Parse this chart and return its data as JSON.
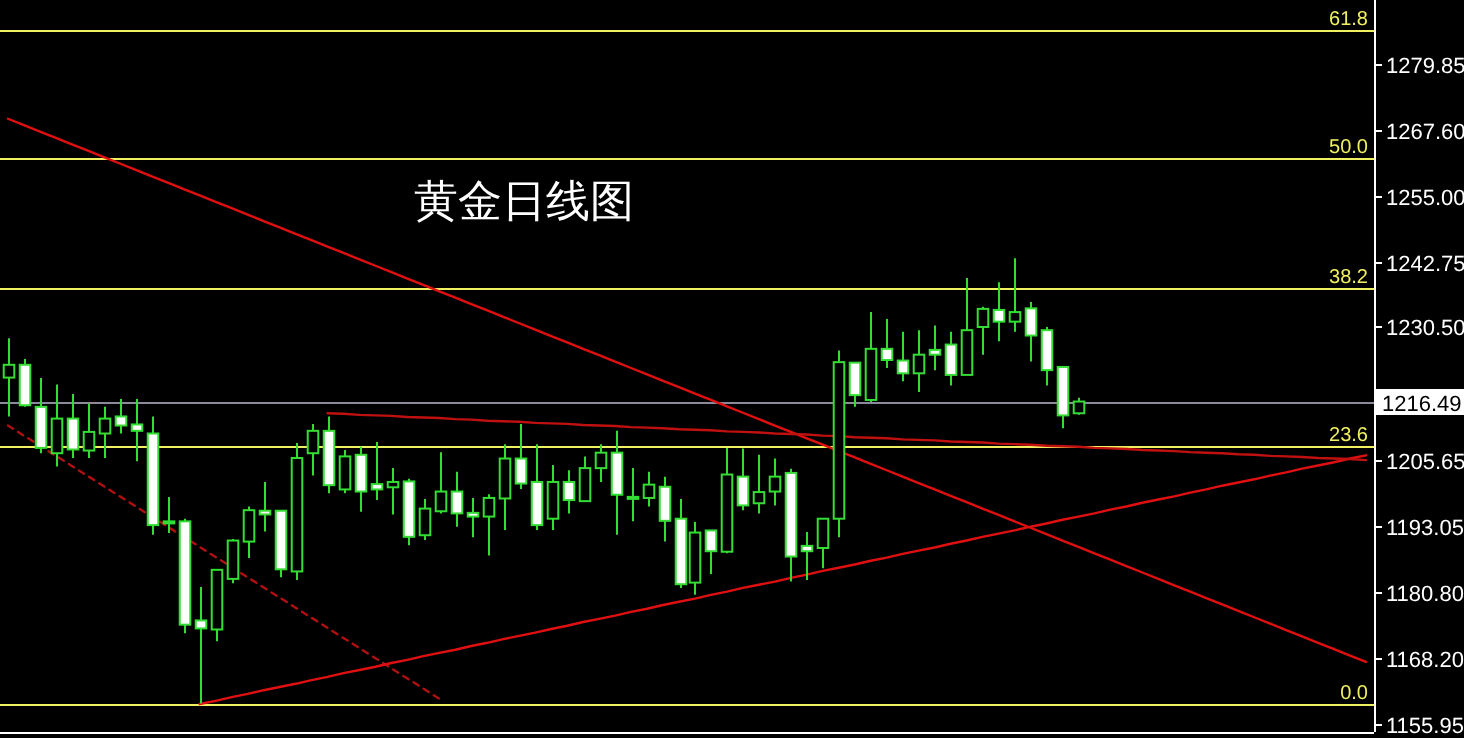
{
  "chart_data": {
    "type": "candlestick",
    "title": "黄金日线图",
    "categories": [
      null,
      null,
      null,
      null,
      null,
      null,
      null,
      null,
      null,
      null,
      null,
      null,
      null,
      null,
      null,
      null,
      null,
      null,
      null,
      null,
      null,
      null,
      null,
      null,
      null,
      null,
      null,
      null,
      null,
      null,
      null,
      null,
      null,
      null,
      null,
      null,
      null,
      null,
      null,
      null,
      null,
      null,
      null,
      null,
      null,
      null,
      null,
      null,
      null,
      null,
      null,
      null,
      null,
      null,
      null,
      null,
      null,
      null,
      null,
      null,
      null,
      null,
      null,
      null,
      null,
      null,
      null,
      null,
      null,
      null,
      null,
      null,
      null,
      null,
      null,
      null,
      null,
      null,
      null,
      null,
      null,
      null,
      null,
      null,
      null,
      null
    ],
    "ohlc": [
      [
        1221.0,
        1228.4,
        1213.7,
        1223.4
      ],
      [
        1223.4,
        1224.5,
        1215.5,
        1215.8
      ],
      [
        1215.5,
        1220.9,
        1206.8,
        1207.8
      ],
      [
        1206.8,
        1219.7,
        1204.3,
        1213.3
      ],
      [
        1213.3,
        1217.9,
        1205.9,
        1207.5
      ],
      [
        1207.3,
        1216.2,
        1205.9,
        1210.8
      ],
      [
        1210.5,
        1215.5,
        1205.9,
        1213.3
      ],
      [
        1213.7,
        1217.0,
        1210.5,
        1212.0
      ],
      [
        1212.2,
        1217.0,
        1205.3,
        1211.0
      ],
      [
        1210.5,
        1213.7,
        1191.5,
        1193.3
      ],
      [
        1193.9,
        1198.6,
        1191.8,
        1194.0
      ],
      [
        1194.0,
        1194.5,
        1173.0,
        1174.6
      ],
      [
        1175.4,
        1181.7,
        1159.8,
        1173.9
      ],
      [
        1173.7,
        1184.9,
        1171.5,
        1184.9
      ],
      [
        1183.2,
        1190.7,
        1182.4,
        1190.4
      ],
      [
        1190.2,
        1196.8,
        1187.1,
        1196.1
      ],
      [
        1196.0,
        1201.4,
        1192.1,
        1195.3
      ],
      [
        1196.0,
        1196.0,
        1183.5,
        1185.0
      ],
      [
        1184.6,
        1208.7,
        1183.0,
        1205.9
      ],
      [
        1206.8,
        1212.3,
        1202.6,
        1211.0
      ],
      [
        1211.0,
        1213.7,
        1199.3,
        1200.8
      ],
      [
        1200.0,
        1207.4,
        1199.3,
        1206.2
      ],
      [
        1206.5,
        1208.0,
        1195.8,
        1199.6
      ],
      [
        1201.0,
        1208.9,
        1198.0,
        1200.0
      ],
      [
        1200.4,
        1204.0,
        1195.3,
        1201.4
      ],
      [
        1201.5,
        1202.0,
        1189.5,
        1191.1
      ],
      [
        1191.4,
        1198.2,
        1190.5,
        1196.4
      ],
      [
        1195.9,
        1207.0,
        1195.5,
        1199.6
      ],
      [
        1199.6,
        1203.3,
        1193.0,
        1195.5
      ],
      [
        1195.6,
        1198.4,
        1191.0,
        1194.9
      ],
      [
        1194.9,
        1199.1,
        1187.6,
        1198.4
      ],
      [
        1198.3,
        1208.5,
        1192.4,
        1205.8
      ],
      [
        1205.8,
        1212.3,
        1200.1,
        1201.1
      ],
      [
        1201.4,
        1208.5,
        1192.4,
        1193.3
      ],
      [
        1194.5,
        1204.6,
        1192.4,
        1201.4
      ],
      [
        1201.4,
        1203.6,
        1195.5,
        1198.0
      ],
      [
        1197.8,
        1206.2,
        1197.8,
        1204.0
      ],
      [
        1204.0,
        1208.5,
        1201.4,
        1206.9
      ],
      [
        1206.9,
        1211.0,
        1191.5,
        1199.0
      ],
      [
        1198.6,
        1204.0,
        1194.0,
        1198.6
      ],
      [
        1198.4,
        1203.3,
        1196.8,
        1200.9
      ],
      [
        1200.5,
        1202.4,
        1190.2,
        1194.1
      ],
      [
        1194.5,
        1198.2,
        1181.5,
        1182.2
      ],
      [
        1182.5,
        1193.9,
        1180.2,
        1191.9
      ],
      [
        1192.3,
        1192.3,
        1184.1,
        1188.4
      ],
      [
        1188.3,
        1207.8,
        1188.0,
        1202.8
      ],
      [
        1202.4,
        1207.7,
        1196.1,
        1197.0
      ],
      [
        1197.4,
        1206.5,
        1195.5,
        1199.5
      ],
      [
        1199.6,
        1205.8,
        1197.0,
        1202.4
      ],
      [
        1203.1,
        1203.9,
        1182.7,
        1187.4
      ],
      [
        1189.4,
        1192.0,
        1183.0,
        1188.4
      ],
      [
        1189.0,
        1194.5,
        1185.2,
        1194.5
      ],
      [
        1194.5,
        1226.1,
        1191.0,
        1223.9
      ],
      [
        1223.8,
        1223.8,
        1215.5,
        1217.7
      ],
      [
        1216.8,
        1233.3,
        1216.4,
        1226.4
      ],
      [
        1226.4,
        1232.0,
        1222.8,
        1224.3
      ],
      [
        1224.2,
        1229.6,
        1220.3,
        1221.8
      ],
      [
        1221.8,
        1229.9,
        1218.3,
        1225.3
      ],
      [
        1226.2,
        1230.8,
        1222.4,
        1225.3
      ],
      [
        1227.2,
        1229.6,
        1219.5,
        1221.5
      ],
      [
        1221.5,
        1239.7,
        1221.5,
        1229.9
      ],
      [
        1230.5,
        1234.3,
        1225.3,
        1233.9
      ],
      [
        1233.7,
        1238.9,
        1227.8,
        1231.5
      ],
      [
        1231.5,
        1243.4,
        1229.6,
        1233.3
      ],
      [
        1234.0,
        1235.2,
        1224.0,
        1228.9
      ],
      [
        1229.9,
        1230.5,
        1219.5,
        1222.4
      ],
      [
        1223.0,
        1223.0,
        1211.5,
        1213.9
      ],
      [
        1214.3,
        1217.2,
        1214.0,
        1216.5
      ],
      null,
      null,
      null,
      null,
      null,
      null,
      null,
      null,
      null,
      null,
      null,
      null,
      null,
      null,
      null,
      null,
      null,
      null
    ],
    "color": "#33dd33",
    "colors": [
      "#000000",
      "#ffffff",
      "#ffffff",
      "#000000",
      "#ffffff",
      "#000000",
      "#000000",
      "#ffffff",
      "#ffffff",
      "#ffffff",
      "#000000",
      "#ffffff",
      "#ffffff",
      "#000000",
      "#000000",
      "#000000",
      "#ffffff",
      "#ffffff",
      "#000000",
      "#000000",
      "#ffffff",
      "#000000",
      "#ffffff",
      "#ffffff",
      "#000000",
      "#ffffff",
      "#000000",
      "#000000",
      "#ffffff",
      "#ffffff",
      "#000000",
      "#000000",
      "#ffffff",
      "#ffffff",
      "#000000",
      "#ffffff",
      "#000000",
      "#000000",
      "#ffffff",
      "#000000",
      "#000000",
      "#ffffff",
      "#ffffff",
      "#000000",
      "#ffffff",
      "#000000",
      "#ffffff",
      "#000000",
      "#000000",
      "#ffffff",
      "#ffffff",
      "#000000",
      "#000000",
      "#ffffff",
      "#000000",
      "#ffffff",
      "#ffffff",
      "#000000",
      "#ffffff",
      "#ffffff",
      "#000000",
      "#000000",
      "#ffffff",
      "#000000",
      "#ffffff",
      "#ffffff",
      "#ffffff",
      "#000000",
      null,
      null,
      null,
      null,
      null,
      null,
      null,
      null,
      null,
      null,
      null,
      null,
      null,
      null,
      null,
      null,
      null,
      null
    ],
    "series": [
      {
        "type": "line",
        "color": "#e01010",
        "values": [
          1269.6,
          1268.4,
          1267.2,
          1266.0,
          1264.8,
          1263.6,
          1262.4,
          1261.2,
          1260.0,
          1258.8,
          1257.6,
          1256.4,
          1255.2,
          1254.0,
          1252.8,
          1251.6,
          1250.4,
          1249.2,
          1248.0,
          1246.8,
          1245.6,
          1244.4,
          1243.2,
          1242.0,
          1240.8,
          1239.6,
          1238.4,
          1237.2,
          1236.0,
          1234.8,
          1233.6,
          1232.4,
          1231.2,
          1230.0,
          1228.8,
          1227.6,
          1226.4,
          1225.2,
          1224.0,
          1222.8,
          1221.6,
          1220.4,
          1219.2,
          1218.0,
          1216.8,
          1215.6,
          1214.4,
          1213.2,
          1212.0,
          1210.8,
          1209.6,
          1208.4,
          1207.2,
          1206.0,
          1204.8,
          1203.6,
          1202.4,
          1201.2,
          1200.0,
          1198.8,
          1197.6,
          1196.4,
          1195.2,
          1194.0,
          1192.8,
          1191.6,
          1190.4,
          1189.2,
          1188.0,
          1186.8,
          1185.6,
          1184.4,
          1183.2,
          1182.0,
          1180.8,
          1179.6,
          1178.4,
          1177.2,
          1176.0,
          1174.8,
          1173.6,
          1172.4,
          1171.2,
          1170.0,
          1168.8,
          1167.6
        ]
      },
      {
        "type": "line",
        "color": "#b01010",
        "line_style": "dashed",
        "values": [
          1212.0,
          1210.1,
          1208.2,
          1206.3,
          1204.4,
          1202.5,
          1200.6,
          1198.7,
          1196.8,
          1194.9,
          1193.0,
          1191.1,
          1189.2,
          1187.3,
          1185.4,
          1183.5,
          1181.6,
          1179.7,
          1177.8,
          1175.9,
          1174.0,
          1172.1,
          1170.2,
          1168.3,
          1166.4,
          1164.5,
          1162.6,
          1160.7,
          null,
          null,
          null,
          null,
          null,
          null,
          null,
          null,
          null,
          null,
          null,
          null,
          null,
          null,
          null,
          null,
          null,
          null,
          null,
          null,
          null,
          null,
          null,
          null,
          null,
          null,
          null,
          null,
          null,
          null,
          null,
          null,
          null,
          null,
          null,
          null,
          null,
          null,
          null,
          null,
          null,
          null,
          null,
          null,
          null,
          null,
          null,
          null,
          null,
          null,
          null,
          null,
          null,
          null,
          null,
          null,
          null,
          null
        ]
      },
      {
        "type": "line",
        "color": "#e01010",
        "values": [
          null,
          null,
          null,
          null,
          null,
          null,
          null,
          null,
          null,
          null,
          null,
          null,
          1159.7,
          1160.3,
          1161.0,
          1161.6,
          1162.3,
          1162.9,
          1163.5,
          1164.2,
          1164.8,
          1165.5,
          1166.1,
          1166.7,
          1167.4,
          1168.0,
          1168.7,
          1169.3,
          1169.9,
          1170.6,
          1171.2,
          1171.9,
          1172.5,
          1173.1,
          1173.8,
          1174.4,
          1175.1,
          1175.7,
          1176.3,
          1177.0,
          1177.6,
          1178.3,
          1178.9,
          1179.5,
          1180.2,
          1180.8,
          1181.5,
          1182.1,
          1182.7,
          1183.4,
          1184.0,
          1184.7,
          1185.3,
          1185.9,
          1186.6,
          1187.2,
          1187.9,
          1188.5,
          1189.1,
          1189.8,
          1190.4,
          1191.1,
          1191.7,
          1192.3,
          1193.0,
          1193.6,
          1194.3,
          1194.9,
          1195.5,
          1196.2,
          1196.8,
          1197.5,
          1198.1,
          1198.7,
          1199.4,
          1200.0,
          1200.7,
          1201.3,
          1201.9,
          1202.6,
          1203.2,
          1203.9,
          1204.5,
          1205.1,
          1205.8,
          1206.4
        ]
      },
      {
        "type": "line",
        "color": "#c01010",
        "values": [
          null,
          null,
          null,
          null,
          null,
          null,
          null,
          null,
          null,
          null,
          null,
          null,
          null,
          null,
          null,
          null,
          null,
          null,
          null,
          null,
          1214.3,
          1214.2,
          1214.0,
          1213.9,
          1213.8,
          1213.6,
          1213.5,
          1213.4,
          1213.2,
          1213.1,
          1212.9,
          1212.8,
          1212.7,
          1212.5,
          1212.4,
          1212.3,
          1212.1,
          1212.0,
          1211.9,
          1211.7,
          1211.6,
          1211.5,
          1211.3,
          1211.2,
          1211.1,
          1210.9,
          1210.8,
          1210.7,
          1210.5,
          1210.4,
          1210.3,
          1210.1,
          1210.0,
          1209.8,
          1209.7,
          1209.6,
          1209.4,
          1209.3,
          1209.2,
          1209.0,
          1208.9,
          1208.8,
          1208.6,
          1208.5,
          1208.4,
          1208.2,
          1208.1,
          1208.0,
          1207.8,
          1207.7,
          1207.6,
          1207.4,
          1207.3,
          1207.2,
          1207.0,
          1206.9,
          1206.8,
          1206.6,
          1206.5,
          1206.3,
          1206.2,
          1206.1,
          1205.9,
          1205.8,
          1205.7,
          1205.5
        ]
      }
    ],
    "ref_lines": [
      {
        "axis": "y",
        "value": 1216.49,
        "label": "1216.49",
        "color": "#8a8a9a"
      },
      {
        "axis": "y",
        "value": 1159.7,
        "color": "#f0f060"
      },
      {
        "axis": "y",
        "value": 1208.0,
        "color": "#f0f060"
      },
      {
        "axis": "y",
        "value": 1237.9,
        "color": "#f0f060"
      },
      {
        "axis": "y",
        "value": 1262.1,
        "color": "#f0f060"
      },
      {
        "axis": "y",
        "value": 1286.2,
        "color": "#f0f060"
      }
    ],
    "annotations": [
      {
        "text": "0.0",
        "y": 1159.7
      },
      {
        "text": "23.6",
        "y": 1208.0
      },
      {
        "text": "38.2",
        "y": 1237.9
      },
      {
        "text": "50.0",
        "y": 1262.1
      },
      {
        "text": "61.8",
        "y": 1286.2
      }
    ],
    "ylim": [
      1154.45,
      1291.9
    ],
    "yticks": [
      {
        "value": 1155.95,
        "label": "1155.95"
      },
      {
        "value": 1168.2,
        "label": "1168.20"
      },
      {
        "value": 1180.8,
        "label": "1180.80"
      },
      {
        "value": 1193.05,
        "label": "1193.05"
      },
      {
        "value": 1205.65,
        "label": "1205.65"
      },
      {
        "value": 1217.9,
        "label": null
      },
      {
        "value": 1230.5,
        "label": "1230.50"
      },
      {
        "value": 1242.75,
        "label": "1242.75"
      },
      {
        "value": 1255.0,
        "label": "1255.00"
      },
      {
        "value": 1267.6,
        "label": "1267.60"
      },
      {
        "value": 1279.85,
        "label": "1279.85"
      }
    ],
    "tick_labels": "y"
  }
}
